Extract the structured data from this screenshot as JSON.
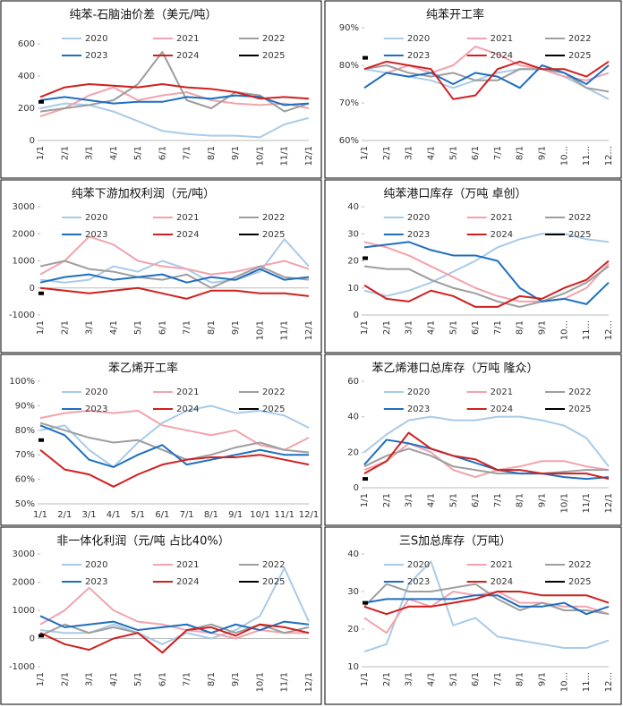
{
  "chart_data": [
    {
      "type": "line",
      "title": "纯苯-石脑油价差（美元/吨）",
      "label_rotate": true,
      "categories": [
        "1/1",
        "2/1",
        "3/1",
        "4/1",
        "5/1",
        "6/1",
        "7/1",
        "8/1",
        "9/1",
        "10/1",
        "11/1",
        "12/1"
      ],
      "ylim": [
        0,
        700
      ],
      "yticks": [
        0,
        200,
        400,
        600
      ],
      "series": [
        {
          "name": "2020",
          "color": "#a9cbe8",
          "values": [
            200,
            230,
            220,
            180,
            120,
            60,
            40,
            30,
            30,
            20,
            100,
            140
          ]
        },
        {
          "name": "2021",
          "color": "#f2a3ad",
          "values": [
            150,
            200,
            280,
            330,
            250,
            280,
            300,
            250,
            230,
            220,
            230,
            200
          ]
        },
        {
          "name": "2022",
          "color": "#9e9e9e",
          "values": [
            180,
            200,
            220,
            250,
            350,
            550,
            250,
            200,
            300,
            280,
            180,
            230
          ]
        },
        {
          "name": "2023",
          "color": "#1f6fbf",
          "values": [
            250,
            270,
            250,
            230,
            240,
            240,
            270,
            260,
            280,
            270,
            220,
            230
          ]
        },
        {
          "name": "2024",
          "color": "#d0201f",
          "values": [
            270,
            330,
            350,
            340,
            330,
            350,
            330,
            320,
            300,
            260,
            270,
            260
          ]
        },
        {
          "name": "2025",
          "color": "#000000",
          "values": [
            240,
            null,
            null,
            null,
            null,
            null,
            null,
            null,
            null,
            null,
            null,
            null
          ]
        }
      ]
    },
    {
      "type": "line",
      "title": "纯苯开工率",
      "label_rotate": true,
      "categories": [
        "1/1",
        "2/1",
        "3/1",
        "4/1",
        "5/1",
        "6/1",
        "7/1",
        "8/1",
        "9/1",
        "10...",
        "11...",
        "12..."
      ],
      "ylim": [
        60,
        90
      ],
      "yticks": [
        {
          "value": 60,
          "label": "60%"
        },
        {
          "value": 70,
          "label": "70%"
        },
        {
          "value": 80,
          "label": "80%"
        },
        {
          "value": 90,
          "label": "90%"
        }
      ],
      "series": [
        {
          "name": "2020",
          "color": "#a9cbe8",
          "values": [
            79,
            78,
            77,
            76,
            74,
            76,
            78,
            79,
            79,
            77,
            74,
            71
          ]
        },
        {
          "name": "2021",
          "color": "#f2a3ad",
          "values": [
            74,
            78,
            80,
            78,
            80,
            85,
            83,
            80,
            79,
            77,
            76,
            78
          ]
        },
        {
          "name": "2022",
          "color": "#9e9e9e",
          "values": [
            79,
            80,
            78,
            77,
            78,
            76,
            76,
            79,
            79,
            78,
            74,
            73
          ]
        },
        {
          "name": "2023",
          "color": "#1f6fbf",
          "values": [
            74,
            78,
            77,
            78,
            75,
            78,
            77,
            74,
            80,
            78,
            75,
            80
          ]
        },
        {
          "name": "2024",
          "color": "#d0201f",
          "values": [
            79,
            81,
            80,
            79,
            71,
            72,
            79,
            81,
            79,
            79,
            77,
            81
          ]
        },
        {
          "name": "2025",
          "color": "#000000",
          "values": [
            82,
            null,
            null,
            null,
            null,
            null,
            null,
            null,
            null,
            null,
            null,
            null
          ]
        }
      ]
    },
    {
      "type": "line",
      "title": "纯苯下游加权利润（元/吨）",
      "label_rotate": true,
      "categories": [
        "1/1",
        "2/1",
        "3/1",
        "4/1",
        "5/1",
        "6/1",
        "7/1",
        "8/1",
        "9/1",
        "10/1",
        "11/1",
        "12/1"
      ],
      "ylim": [
        -1000,
        3000
      ],
      "yticks": [
        -1000,
        0,
        1000,
        2000,
        3000
      ],
      "series": [
        {
          "name": "2020",
          "color": "#a9cbe8",
          "values": [
            300,
            200,
            300,
            800,
            600,
            1000,
            700,
            200,
            300,
            600,
            1800,
            800
          ]
        },
        {
          "name": "2021",
          "color": "#f2a3ad",
          "values": [
            500,
            1000,
            1900,
            1600,
            1000,
            800,
            700,
            500,
            600,
            800,
            1000,
            700
          ]
        },
        {
          "name": "2022",
          "color": "#9e9e9e",
          "values": [
            800,
            1000,
            700,
            600,
            400,
            300,
            500,
            0,
            400,
            800,
            400,
            300
          ]
        },
        {
          "name": "2023",
          "color": "#1f6fbf",
          "values": [
            200,
            400,
            500,
            300,
            400,
            500,
            200,
            400,
            300,
            700,
            300,
            400
          ]
        },
        {
          "name": "2024",
          "color": "#d0201f",
          "values": [
            0,
            -100,
            -200,
            -100,
            0,
            -200,
            -400,
            -100,
            -100,
            -200,
            -200,
            -300
          ]
        },
        {
          "name": "2025",
          "color": "#000000",
          "values": [
            -200,
            null,
            null,
            null,
            null,
            null,
            null,
            null,
            null,
            null,
            null,
            null
          ]
        }
      ]
    },
    {
      "type": "line",
      "title": "纯苯港口库存（万吨 卓创）",
      "label_rotate": true,
      "categories": [
        "1/1",
        "2/1",
        "3/1",
        "4/1",
        "5/1",
        "6/1",
        "7/1",
        "8/1",
        "9/1",
        "10...",
        "11...",
        "12..."
      ],
      "ylim": [
        0,
        40
      ],
      "yticks": [
        0,
        10,
        20,
        30,
        40
      ],
      "series": [
        {
          "name": "2020",
          "color": "#a9cbe8",
          "values": [
            9,
            7,
            9,
            12,
            16,
            20,
            25,
            28,
            30,
            30,
            28,
            27
          ]
        },
        {
          "name": "2021",
          "color": "#f2a3ad",
          "values": [
            27,
            25,
            22,
            18,
            14,
            10,
            7,
            5,
            5,
            6,
            10,
            19
          ]
        },
        {
          "name": "2022",
          "color": "#9e9e9e",
          "values": [
            18,
            17,
            17,
            13,
            10,
            8,
            5,
            3,
            5,
            8,
            12,
            18
          ]
        },
        {
          "name": "2023",
          "color": "#1f6fbf",
          "values": [
            25,
            26,
            27,
            24,
            22,
            22,
            20,
            10,
            5,
            6,
            4,
            12
          ]
        },
        {
          "name": "2024",
          "color": "#d0201f",
          "values": [
            11,
            6,
            5,
            9,
            7,
            3,
            3,
            7,
            6,
            10,
            13,
            20
          ]
        },
        {
          "name": "2025",
          "color": "#000000",
          "values": [
            21,
            null,
            null,
            null,
            null,
            null,
            null,
            null,
            null,
            null,
            null,
            null
          ]
        }
      ]
    },
    {
      "type": "line",
      "title": "苯乙烯开工率",
      "label_rotate": false,
      "categories": [
        "1/1",
        "2/1",
        "3/1",
        "4/1",
        "5/1",
        "6/1",
        "7/1",
        "8/1",
        "9/1",
        "10/1",
        "11/1",
        "12/1"
      ],
      "ylim": [
        50,
        100
      ],
      "yticks": [
        {
          "value": 50,
          "label": "50%"
        },
        {
          "value": 60,
          "label": "60%"
        },
        {
          "value": 70,
          "label": "70%"
        },
        {
          "value": 80,
          "label": "80%"
        },
        {
          "value": 90,
          "label": "90%"
        },
        {
          "value": 100,
          "label": "100%"
        }
      ],
      "series": [
        {
          "name": "2020",
          "color": "#a9cbe8",
          "values": [
            80,
            82,
            72,
            65,
            75,
            83,
            88,
            90,
            87,
            88,
            86,
            81
          ]
        },
        {
          "name": "2021",
          "color": "#f2a3ad",
          "values": [
            85,
            87,
            88,
            87,
            88,
            82,
            80,
            78,
            80,
            74,
            72,
            77
          ]
        },
        {
          "name": "2022",
          "color": "#9e9e9e",
          "values": [
            83,
            80,
            77,
            75,
            76,
            72,
            68,
            70,
            73,
            75,
            72,
            71
          ]
        },
        {
          "name": "2023",
          "color": "#1f6fbf",
          "values": [
            82,
            78,
            68,
            65,
            70,
            74,
            66,
            68,
            70,
            72,
            70,
            70
          ]
        },
        {
          "name": "2024",
          "color": "#d0201f",
          "values": [
            72,
            64,
            62,
            57,
            62,
            66,
            68,
            69,
            69,
            70,
            68,
            66
          ]
        },
        {
          "name": "2025",
          "color": "#000000",
          "values": [
            76,
            null,
            null,
            null,
            null,
            null,
            null,
            null,
            null,
            null,
            null,
            null
          ]
        }
      ]
    },
    {
      "type": "line",
      "title": "苯乙烯港口总库存（万吨 隆众）",
      "label_rotate": true,
      "categories": [
        "1/1",
        "2/1",
        "3/1",
        "4/1",
        "5/1",
        "6/1",
        "7/1",
        "8/1",
        "9/1",
        "10/1",
        "11/1",
        "12/1"
      ],
      "ylim": [
        0,
        60
      ],
      "yticks": [
        0,
        20,
        40,
        60
      ],
      "series": [
        {
          "name": "2020",
          "color": "#a9cbe8",
          "values": [
            20,
            30,
            38,
            40,
            38,
            38,
            40,
            40,
            38,
            35,
            28,
            12
          ]
        },
        {
          "name": "2021",
          "color": "#f2a3ad",
          "values": [
            10,
            15,
            25,
            20,
            10,
            6,
            10,
            12,
            15,
            15,
            12,
            10
          ]
        },
        {
          "name": "2022",
          "color": "#9e9e9e",
          "values": [
            12,
            18,
            22,
            18,
            12,
            10,
            8,
            8,
            8,
            9,
            10,
            10
          ]
        },
        {
          "name": "2023",
          "color": "#1f6fbf",
          "values": [
            13,
            27,
            25,
            22,
            18,
            14,
            10,
            8,
            8,
            6,
            5,
            6
          ]
        },
        {
          "name": "2024",
          "color": "#d0201f",
          "values": [
            8,
            15,
            31,
            22,
            18,
            16,
            10,
            10,
            8,
            8,
            8,
            5
          ]
        },
        {
          "name": "2025",
          "color": "#000000",
          "values": [
            5,
            null,
            null,
            null,
            null,
            null,
            null,
            null,
            null,
            null,
            null,
            null
          ]
        }
      ]
    },
    {
      "type": "line",
      "title": "非一体化利润（元/吨 占比40%）",
      "label_rotate": true,
      "categories": [
        "1/1",
        "2/1",
        "3/1",
        "4/1",
        "5/1",
        "6/1",
        "7/1",
        "8/1",
        "9/1",
        "10/1",
        "11/1",
        "12/1"
      ],
      "ylim": [
        -1000,
        3000
      ],
      "yticks": [
        -1000,
        0,
        1000,
        2000,
        3000
      ],
      "series": [
        {
          "name": "2020",
          "color": "#a9cbe8",
          "values": [
            300,
            200,
            200,
            500,
            200,
            -200,
            200,
            0,
            300,
            800,
            2500,
            600
          ]
        },
        {
          "name": "2021",
          "color": "#f2a3ad",
          "values": [
            500,
            1000,
            1800,
            1000,
            600,
            500,
            300,
            200,
            0,
            300,
            200,
            200
          ]
        },
        {
          "name": "2022",
          "color": "#9e9e9e",
          "values": [
            100,
            500,
            200,
            400,
            200,
            -500,
            300,
            500,
            200,
            500,
            200,
            400
          ]
        },
        {
          "name": "2023",
          "color": "#1f6fbf",
          "values": [
            800,
            400,
            500,
            600,
            300,
            400,
            500,
            200,
            500,
            300,
            600,
            500
          ]
        },
        {
          "name": "2024",
          "color": "#d0201f",
          "values": [
            200,
            -200,
            -400,
            0,
            200,
            -500,
            300,
            400,
            100,
            500,
            400,
            200
          ]
        },
        {
          "name": "2025",
          "color": "#000000",
          "values": [
            100,
            null,
            null,
            null,
            null,
            null,
            null,
            null,
            null,
            null,
            null,
            null
          ]
        }
      ]
    },
    {
      "type": "line",
      "title": "三S加总库存（万吨）",
      "label_rotate": true,
      "categories": [
        "1/1",
        "2/1",
        "3/1",
        "4/1",
        "5/1",
        "6/1",
        "7/1",
        "8/1",
        "9/1",
        "10...",
        "11...",
        "12..."
      ],
      "ylim": [
        10,
        40
      ],
      "yticks": [
        10,
        20,
        30,
        40
      ],
      "series": [
        {
          "name": "2020",
          "color": "#a9cbe8",
          "values": [
            14,
            16,
            32,
            38,
            21,
            23,
            18,
            17,
            16,
            15,
            15,
            17
          ]
        },
        {
          "name": "2021",
          "color": "#f2a3ad",
          "values": [
            23,
            19,
            28,
            26,
            30,
            29,
            30,
            27,
            27,
            26,
            26,
            24
          ]
        },
        {
          "name": "2022",
          "color": "#9e9e9e",
          "values": [
            26,
            32,
            30,
            30,
            31,
            32,
            28,
            25,
            27,
            25,
            25,
            24
          ]
        },
        {
          "name": "2023",
          "color": "#1f6fbf",
          "values": [
            27,
            28,
            28,
            28,
            28,
            29,
            29,
            26,
            26,
            27,
            24,
            26
          ]
        },
        {
          "name": "2024",
          "color": "#d0201f",
          "values": [
            26,
            24,
            26,
            26,
            27,
            28,
            30,
            30,
            29,
            29,
            29,
            27
          ]
        },
        {
          "name": "2025",
          "color": "#000000",
          "values": [
            27,
            null,
            null,
            null,
            null,
            null,
            null,
            null,
            null,
            null,
            null,
            null
          ]
        }
      ]
    }
  ]
}
